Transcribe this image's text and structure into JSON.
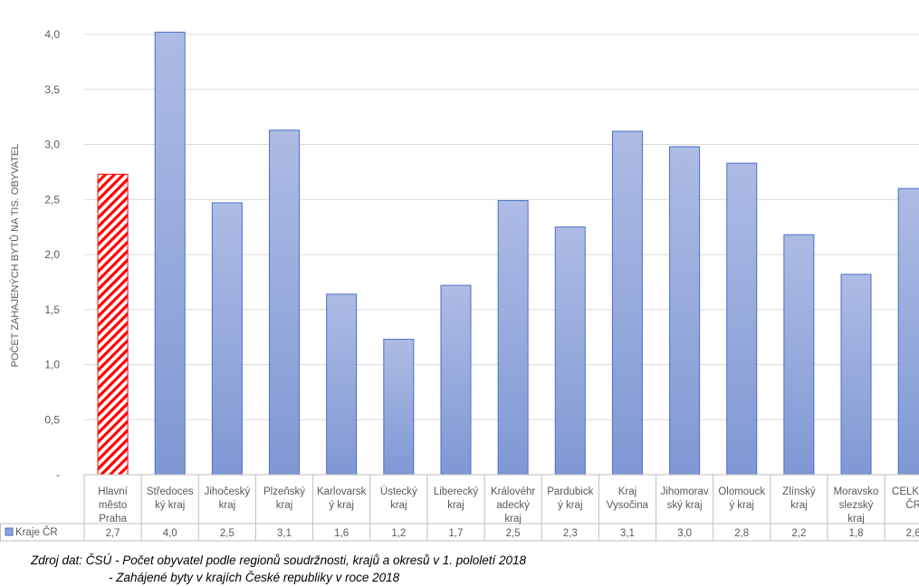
{
  "chart_data": {
    "type": "bar",
    "ylabel": "POČET ZAHAJENÝCH BYTŮ NA TIS. OBYVATEL",
    "ylim": [
      0,
      4.0
    ],
    "yticks": [
      "-",
      "0,5",
      "1,0",
      "1,5",
      "2,0",
      "2,5",
      "3,0",
      "3,5",
      "4,0"
    ],
    "grid": true,
    "categories": [
      [
        "Hlavní",
        "město",
        "Praha"
      ],
      [
        "Středoces",
        "ký kraj"
      ],
      [
        "Jihočeský",
        "kraj"
      ],
      [
        "Plzeňský",
        "kraj"
      ],
      [
        "Karlovarsk",
        "ý kraj"
      ],
      [
        "Ústecký",
        "kraj"
      ],
      [
        "Liberecký",
        "kraj"
      ],
      [
        "Královéhr",
        "adecký",
        "kraj"
      ],
      [
        "Pardubick",
        "ý kraj"
      ],
      [
        "Kraj",
        "Vysočina"
      ],
      [
        "Jihomorav",
        "ský kraj"
      ],
      [
        "Olomouck",
        "ý kraj"
      ],
      [
        "Zlínský",
        "kraj"
      ],
      [
        "Moravsko",
        "slezský",
        "kraj"
      ],
      [
        "CELKEM",
        "ČR"
      ]
    ],
    "series": [
      {
        "name": "Kraje ČR",
        "values": [
          2.73,
          4.02,
          2.47,
          3.13,
          1.64,
          1.23,
          1.72,
          2.49,
          2.25,
          3.12,
          2.98,
          2.83,
          2.18,
          1.82,
          2.6
        ],
        "labels": [
          "2,7",
          "4,0",
          "2,5",
          "3,1",
          "1,6",
          "1,2",
          "1,7",
          "2,5",
          "2,3",
          "3,1",
          "3,0",
          "2,8",
          "2,2",
          "1,8",
          "2,6"
        ],
        "color": "#8EA3D8",
        "border": "#4A6FC7",
        "highlight_index": 0,
        "highlight_color": "#FF0000"
      }
    ]
  },
  "source": {
    "line1": "Zdroj dat: ČSÚ - Počet obyvatel podle regionů soudržnosti, krajů a okresů v 1. pololetí 2018",
    "line2": "- Zahájené byty v krajích České republiky v roce 2018"
  }
}
